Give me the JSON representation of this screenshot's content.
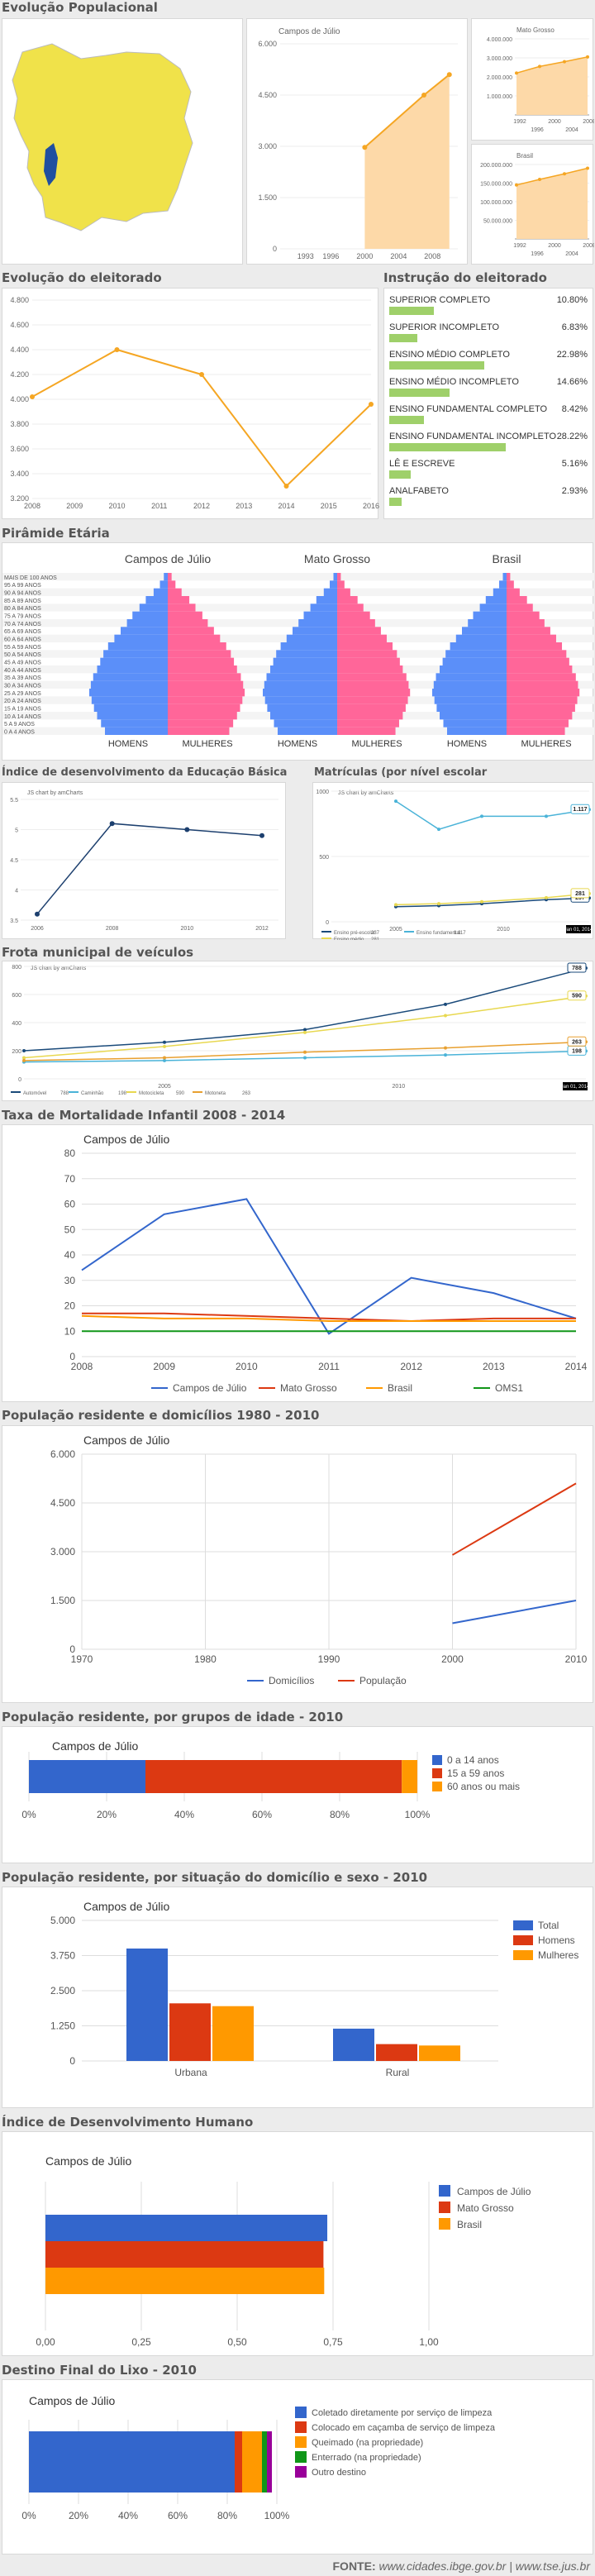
{
  "sections": {
    "evo_pop": "Evolução Populacional",
    "evo_eleitorado": "Evolução do eleitorado",
    "instrucao": "Instrução do eleitorado",
    "piramide": "Pirâmide Etária",
    "ideb": "Índice de desenvolvimento da Educação Básica",
    "matriculas": "Matrículas (por nível escolar",
    "frota": "Frota municipal de veículos",
    "mortalidade": "Taxa de Mortalidade Infantil 2008 - 2014",
    "pop_dom": "População residente e domicílios 1980 - 2010",
    "pop_idade": "População residente, por grupos de idade - 2010",
    "pop_sexo": "População residente, por situação do domicílio e sexo - 2010",
    "idh": "Índice de Desenvolvimento Humano",
    "lixo": "Destino Final do Lixo - 2010"
  },
  "footer": {
    "label": "FONTE:",
    "sources": "www.cidades.ibge.gov.br | www.tse.jus.br"
  },
  "pyramid": {
    "titles": [
      "Campos de Júlio",
      "Mato Grosso",
      "Brasil"
    ],
    "homens": "HOMENS",
    "mulheres": "MULHERES",
    "age_labels": [
      "MAIS DE 100 ANOS",
      "95 A 99 ANOS",
      "90 A 94 ANOS",
      "85 A 89 ANOS",
      "80 A 84 ANOS",
      "75 A 79 ANOS",
      "70 A 74 ANOS",
      "65 A 69 ANOS",
      "60 A 64 ANOS",
      "55 A 59 ANOS",
      "50 A 54 ANOS",
      "45 A 49 ANOS",
      "40 A 44 ANOS",
      "35 A 39 ANOS",
      "30 A 34 ANOS",
      "25 A 29 ANOS",
      "20 A 24 ANOS",
      "15 A 19 ANOS",
      "10 A 14 ANOS",
      "5 A 9 ANOS",
      "0 A 4 ANOS"
    ]
  },
  "colors": {
    "orange": "#f5a623",
    "blue": "#3366cc",
    "red": "#dc3912",
    "yellow": "#ff9900",
    "green": "#109618",
    "purple": "#990099",
    "pink": "#ff6699",
    "pyr_blue": "#5b8ff9",
    "bar_green": "#9fd06a",
    "map_yellow": "#f0e24a",
    "map_blue": "#1f4fa0"
  },
  "chart_data": [
    {
      "id": "pop_campos",
      "type": "area",
      "title": "Campos de Júlio",
      "x": [
        2000,
        2007,
        2010
      ],
      "y": [
        2970,
        4500,
        5100
      ],
      "ylim": [
        0,
        6000
      ],
      "yticks": [
        "0",
        "1.500",
        "3.000",
        "4.500",
        "6.000"
      ],
      "xticks": [
        "1993",
        "1996",
        "2000",
        "2004",
        "2008"
      ]
    },
    {
      "id": "pop_mt",
      "type": "area",
      "title": "Mato Grosso",
      "xticks": [
        "1992",
        "2000",
        "2008"
      ],
      "xticks2": [
        "1996",
        "2004"
      ],
      "yticks": [
        "1.000.000",
        "2.000.000",
        "3.000.000",
        "4.000.000"
      ],
      "y": [
        2200000,
        2550000,
        2800000,
        3050000
      ]
    },
    {
      "id": "pop_br",
      "type": "area",
      "title": "Brasil",
      "xticks": [
        "1992",
        "2000",
        "2008"
      ],
      "xticks2": [
        "1996",
        "2004"
      ],
      "yticks": [
        "50.000.000",
        "100.000.000",
        "150.000.000",
        "200.000.000"
      ],
      "y": [
        145000000,
        160000000,
        175000000,
        190000000
      ]
    },
    {
      "id": "eleitorado",
      "type": "line",
      "x": [
        2008,
        2010,
        2012,
        2014,
        2016
      ],
      "y": [
        4020,
        4400,
        4200,
        3300,
        3960
      ],
      "ylim": [
        3200,
        4800
      ],
      "yticks": [
        "3.200",
        "3.400",
        "3.600",
        "3.800",
        "4.000",
        "4.200",
        "4.400",
        "4.600",
        "4.800"
      ],
      "xticks": [
        "2008",
        "2009",
        "2010",
        "2011",
        "2012",
        "2013",
        "2014",
        "2015",
        "2016"
      ]
    },
    {
      "id": "instrucao",
      "type": "bar",
      "categories": [
        "SUPERIOR COMPLETO",
        "SUPERIOR INCOMPLETO",
        "ENSINO MÉDIO COMPLETO",
        "ENSINO MÉDIO INCOMPLETO",
        "ENSINO FUNDAMENTAL COMPLETO",
        "ENSINO FUNDAMENTAL INCOMPLETO",
        "LÊ E ESCREVE",
        "ANALFABETO"
      ],
      "values": [
        10.8,
        6.83,
        22.98,
        14.66,
        8.42,
        28.22,
        5.16,
        2.93
      ],
      "labels": [
        "10.80%",
        "6.83%",
        "22.98%",
        "14.66%",
        "8.42%",
        "28.22%",
        "5.16%",
        "2.93%"
      ]
    },
    {
      "id": "ideb",
      "type": "line",
      "x": [
        2006,
        2008,
        2010,
        2012
      ],
      "y": [
        3.6,
        5.1,
        5.0,
        4.9
      ],
      "ylim": [
        3.5,
        5.5
      ],
      "yticks": [
        "3.5",
        "4",
        "4.5",
        "5",
        "5.5"
      ],
      "xticks": [
        "2006",
        "2008",
        "2010",
        "2012"
      ],
      "note": "JS chart by amCharts"
    },
    {
      "id": "matriculas",
      "type": "line",
      "note": "JS chart by amCharts",
      "xticks": [
        "2005",
        "2010"
      ],
      "yticks": [
        "0",
        "500",
        "1000"
      ],
      "date_label": "Jan 01, 2014",
      "series": [
        {
          "name": "Ensino pré-escolar",
          "last": "237",
          "x": [
            2005,
            2007,
            2009,
            2012,
            2014
          ],
          "values": [
            150,
            160,
            180,
            220,
            237
          ]
        },
        {
          "name": "Ensino fundamental",
          "last": "1.117",
          "x": [
            2005,
            2007,
            2009,
            2012,
            2014
          ],
          "values": [
            1200,
            920,
            1050,
            1050,
            1117
          ]
        },
        {
          "name": "Ensino médio",
          "last": "281",
          "x": [
            2005,
            2007,
            2009,
            2012,
            2014
          ],
          "values": [
            170,
            180,
            200,
            240,
            281
          ]
        }
      ]
    },
    {
      "id": "frota",
      "type": "line",
      "note": "JS chart by amCharts",
      "xticks": [
        "2005",
        "2010"
      ],
      "yticks": [
        "0",
        "200",
        "400",
        "600",
        "800"
      ],
      "date_label": "Jan 01, 2014",
      "series": [
        {
          "name": "Automóvel",
          "last": "788",
          "x": [
            2002,
            2005,
            2008,
            2011,
            2014
          ],
          "values": [
            200,
            260,
            350,
            530,
            788
          ]
        },
        {
          "name": "Caminhão",
          "last": "198",
          "x": [
            2002,
            2005,
            2008,
            2011,
            2014
          ],
          "values": [
            120,
            130,
            150,
            170,
            198
          ]
        },
        {
          "name": "Motocicleta",
          "last": "590",
          "x": [
            2002,
            2005,
            2008,
            2011,
            2014
          ],
          "values": [
            150,
            230,
            330,
            450,
            590
          ]
        },
        {
          "name": "Motoneta",
          "last": "263",
          "x": [
            2002,
            2005,
            2008,
            2011,
            2014
          ],
          "values": [
            130,
            150,
            190,
            220,
            263
          ]
        }
      ]
    },
    {
      "id": "mortalidade",
      "type": "line",
      "title": "Campos de Júlio",
      "x": [
        2008,
        2009,
        2010,
        2011,
        2012,
        2013,
        2014
      ],
      "ylim": [
        0,
        80
      ],
      "yticks": [
        "0",
        "10",
        "20",
        "30",
        "40",
        "50",
        "60",
        "70",
        "80"
      ],
      "xticks": [
        "2008",
        "2009",
        "2010",
        "2011",
        "2012",
        "2013",
        "2014"
      ],
      "series": [
        {
          "name": "Campos de Júlio",
          "values": [
            34,
            56,
            62,
            9,
            31,
            25,
            15
          ]
        },
        {
          "name": "Mato Grosso",
          "values": [
            17,
            17,
            16,
            15,
            14,
            15,
            15
          ]
        },
        {
          "name": "Brasil",
          "values": [
            16,
            15,
            15,
            14,
            14,
            14,
            14
          ]
        },
        {
          "name": "OMS1",
          "values": [
            10,
            10,
            10,
            10,
            10,
            10,
            10
          ]
        }
      ]
    },
    {
      "id": "pop_dom",
      "type": "line",
      "title": "Campos de Júlio",
      "x": [
        1970,
        1980,
        1991,
        2000,
        2010
      ],
      "ylim": [
        0,
        6000
      ],
      "yticks": [
        "0",
        "1.500",
        "3.000",
        "4.500",
        "6.000"
      ],
      "xticks": [
        "1970",
        "1980",
        "1990",
        "2000",
        "2010"
      ],
      "series": [
        {
          "name": "Domicílios",
          "x": [
            2000,
            2010
          ],
          "values": [
            800,
            1500
          ]
        },
        {
          "name": "População",
          "x": [
            2000,
            2010
          ],
          "values": [
            2900,
            5100
          ]
        }
      ]
    },
    {
      "id": "pop_idade",
      "type": "bar",
      "title": "Campos de Júlio",
      "xticks": [
        "0%",
        "20%",
        "40%",
        "60%",
        "80%",
        "100%"
      ],
      "series": [
        {
          "name": "0 a 14 anos",
          "values": [
            30
          ]
        },
        {
          "name": "15 a 59 anos",
          "values": [
            66
          ]
        },
        {
          "name": "60 anos ou mais",
          "values": [
            4
          ]
        }
      ]
    },
    {
      "id": "pop_sexo",
      "type": "bar",
      "title": "Campos de Júlio",
      "categories": [
        "Urbana",
        "Rural"
      ],
      "ylim": [
        0,
        5000
      ],
      "yticks": [
        "0",
        "1.250",
        "2.500",
        "3.750",
        "5.000"
      ],
      "series": [
        {
          "name": "Total",
          "values": [
            4000,
            1150
          ]
        },
        {
          "name": "Homens",
          "values": [
            2050,
            600
          ]
        },
        {
          "name": "Mulheres",
          "values": [
            1950,
            550
          ]
        }
      ]
    },
    {
      "id": "idh",
      "type": "bar",
      "title": "Campos de Júlio",
      "xlim": [
        0,
        1
      ],
      "xticks": [
        "0,00",
        "0,25",
        "0,50",
        "0,75",
        "1,00"
      ],
      "series": [
        {
          "name": "Campos de Júlio",
          "values": [
            0.735
          ]
        },
        {
          "name": "Mato Grosso",
          "values": [
            0.725
          ]
        },
        {
          "name": "Brasil",
          "values": [
            0.727
          ]
        }
      ]
    },
    {
      "id": "lixo",
      "type": "bar",
      "title": "Campos de Júlio",
      "xticks": [
        "0%",
        "20%",
        "40%",
        "60%",
        "80%",
        "100%"
      ],
      "series": [
        {
          "name": "Coletado diretamente por serviço de limpeza",
          "values": [
            83
          ]
        },
        {
          "name": "Colocado em caçamba de serviço de limpeza",
          "values": [
            3
          ]
        },
        {
          "name": "Queimado (na propriedade)",
          "values": [
            8
          ]
        },
        {
          "name": "Enterrado (na propriedade)",
          "values": [
            2
          ]
        },
        {
          "name": "Outro destino",
          "values": [
            2
          ]
        }
      ]
    }
  ]
}
